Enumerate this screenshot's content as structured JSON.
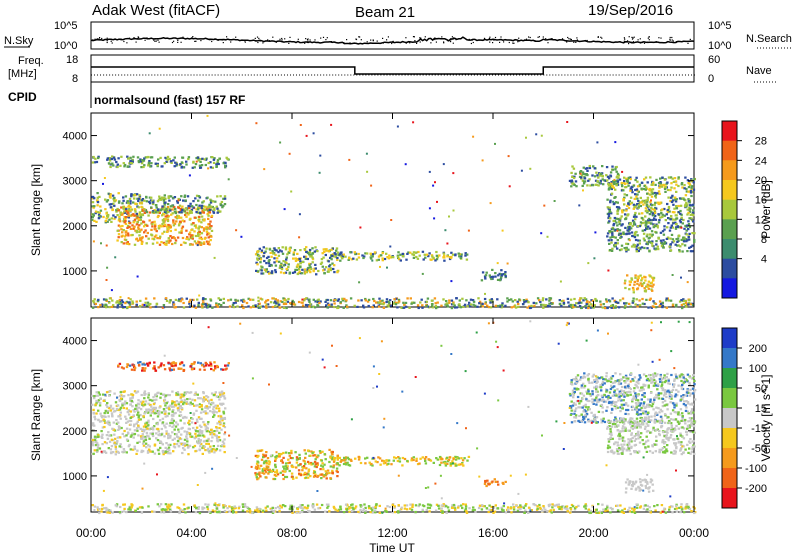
{
  "header": {
    "station": "Adak West (fitACF)",
    "beam": "Beam 21",
    "date": "19/Sep/2016"
  },
  "panels": {
    "nsky": {
      "left_label": "N.Sky",
      "right_label": "N.Search",
      "left_ticks": [
        "10^5",
        "10^0"
      ],
      "right_ticks": [
        "10^5",
        "10^0"
      ]
    },
    "freq": {
      "left_label_1": "Freq.",
      "left_label_2": "[MHz]",
      "right_label": "Nave",
      "left_ticks": [
        "18",
        "8"
      ],
      "right_ticks": [
        "60",
        "0"
      ]
    },
    "cpid": {
      "label": "CPID",
      "text": "normalsound (fast) 157 RF"
    }
  },
  "chart_data": [
    {
      "type": "heatmap",
      "title": "",
      "xlabel": "",
      "ylabel": "Slant Range [km]",
      "x_ticks": [
        "00:00",
        "04:00",
        "08:00",
        "12:00",
        "16:00",
        "20:00",
        "00:00"
      ],
      "xlim_hours": [
        0,
        24
      ],
      "ylim_km": [
        200,
        4500
      ],
      "y_ticks": [
        1000,
        2000,
        3000,
        4000
      ],
      "colorbar": {
        "label": "Power [dB]",
        "ticks": [
          "28",
          "24",
          "20",
          "16",
          "12",
          "8",
          "4"
        ],
        "colors": [
          "#e8141c",
          "#f06418",
          "#f59a1c",
          "#f5c81e",
          "#a8c83c",
          "#5aa050",
          "#3c8c6e",
          "#2c4ca0",
          "#1418e0"
        ]
      },
      "regions": [
        {
          "t0": 0.0,
          "t1": 3.5,
          "r0": 3320,
          "r1": 3560,
          "colors": [
            "#2c4ca0",
            "#5aa050",
            "#a8c83c"
          ]
        },
        {
          "t0": 3.5,
          "t1": 5.5,
          "r0": 3300,
          "r1": 3550,
          "colors": [
            "#5aa050",
            "#a8c83c",
            "#2c4ca0"
          ]
        },
        {
          "t0": 0.0,
          "t1": 2.0,
          "r0": 2100,
          "r1": 2750,
          "colors": [
            "#a8c83c",
            "#f5c81e",
            "#2c4ca0",
            "#5aa050"
          ]
        },
        {
          "t0": 1.0,
          "t1": 4.8,
          "r0": 1600,
          "r1": 2450,
          "colors": [
            "#f59a1c",
            "#f5c81e",
            "#a8c83c",
            "#f06418"
          ]
        },
        {
          "t0": 2.0,
          "t1": 5.3,
          "r0": 2300,
          "r1": 2700,
          "colors": [
            "#2c4ca0",
            "#5aa050",
            "#a8c83c"
          ]
        },
        {
          "t0": 6.5,
          "t1": 9.8,
          "r0": 950,
          "r1": 1550,
          "colors": [
            "#2c4ca0",
            "#5aa050",
            "#a8c83c",
            "#f5c81e"
          ]
        },
        {
          "t0": 9.5,
          "t1": 15.0,
          "r0": 1250,
          "r1": 1450,
          "colors": [
            "#a8c83c",
            "#5aa050",
            "#2c4ca0",
            "#f5c81e"
          ]
        },
        {
          "t0": 19.0,
          "t1": 21.0,
          "r0": 2900,
          "r1": 3350,
          "colors": [
            "#5aa050",
            "#2c4ca0",
            "#a8c83c"
          ]
        },
        {
          "t0": 20.5,
          "t1": 24.0,
          "r0": 2300,
          "r1": 3100,
          "colors": [
            "#5aa050",
            "#a8c83c",
            "#f5c81e",
            "#2c4ca0"
          ]
        },
        {
          "t0": 20.5,
          "t1": 24.0,
          "r0": 1450,
          "r1": 2300,
          "colors": [
            "#2c4ca0",
            "#5aa050",
            "#a8c83c"
          ]
        },
        {
          "t0": 21.2,
          "t1": 22.4,
          "r0": 550,
          "r1": 950,
          "colors": [
            "#f59a1c",
            "#f5c81e",
            "#a8c83c"
          ]
        },
        {
          "t0": 15.5,
          "t1": 16.5,
          "r0": 800,
          "r1": 1050,
          "colors": [
            "#2c4ca0",
            "#5aa050"
          ]
        },
        {
          "t0": 0.0,
          "t1": 24.0,
          "r0": 200,
          "r1": 420,
          "colors": [
            "#2c4ca0",
            "#5aa050",
            "#a8c83c",
            "#f59a1c"
          ]
        }
      ]
    },
    {
      "type": "heatmap",
      "title": "",
      "xlabel": "Time UT",
      "ylabel": "Slant Range [km]",
      "x_ticks": [
        "00:00",
        "04:00",
        "08:00",
        "12:00",
        "16:00",
        "20:00",
        "00:00"
      ],
      "xlim_hours": [
        0,
        24
      ],
      "ylim_km": [
        200,
        4500
      ],
      "y_ticks": [
        1000,
        2000,
        3000,
        4000
      ],
      "colorbar": {
        "label": "Velocity [m s^-1]",
        "ticks": [
          "200",
          "100",
          "50",
          "15",
          "-15",
          "-50",
          "-100",
          "-200"
        ],
        "colors": [
          "#1e3cc8",
          "#3478c8",
          "#2ea046",
          "#7ac840",
          "#c8c8c8",
          "#f5c81e",
          "#f59a1c",
          "#f06418",
          "#e8141c"
        ]
      },
      "regions": [
        {
          "t0": 1.0,
          "t1": 5.5,
          "r0": 3350,
          "r1": 3550,
          "colors": [
            "#e8141c",
            "#f06418",
            "#f59a1c",
            "#3478c8"
          ]
        },
        {
          "t0": 0.0,
          "t1": 5.3,
          "r0": 1500,
          "r1": 2900,
          "colors": [
            "#c8c8c8",
            "#c8c8c8",
            "#c8c8c8",
            "#f5c81e",
            "#7ac840"
          ]
        },
        {
          "t0": 6.5,
          "t1": 9.8,
          "r0": 950,
          "r1": 1600,
          "colors": [
            "#f59a1c",
            "#f5c81e",
            "#f06418",
            "#7ac840"
          ]
        },
        {
          "t0": 9.5,
          "t1": 15.0,
          "r0": 1250,
          "r1": 1450,
          "colors": [
            "#f5c81e",
            "#f59a1c",
            "#7ac840"
          ]
        },
        {
          "t0": 19.0,
          "t1": 24.0,
          "r0": 2200,
          "r1": 3300,
          "colors": [
            "#c8c8c8",
            "#c8c8c8",
            "#7ac840",
            "#3478c8"
          ]
        },
        {
          "t0": 20.5,
          "t1": 24.0,
          "r0": 1500,
          "r1": 2300,
          "colors": [
            "#c8c8c8",
            "#c8c8c8",
            "#7ac840"
          ]
        },
        {
          "t0": 21.2,
          "t1": 22.4,
          "r0": 650,
          "r1": 950,
          "colors": [
            "#c8c8c8",
            "#c8c8c8"
          ]
        },
        {
          "t0": 15.5,
          "t1": 16.5,
          "r0": 800,
          "r1": 950,
          "colors": [
            "#f59a1c",
            "#f06418"
          ]
        },
        {
          "t0": 0.0,
          "t1": 24.0,
          "r0": 200,
          "r1": 400,
          "colors": [
            "#7ac840",
            "#f5c81e",
            "#c8c8c8"
          ]
        }
      ]
    }
  ]
}
